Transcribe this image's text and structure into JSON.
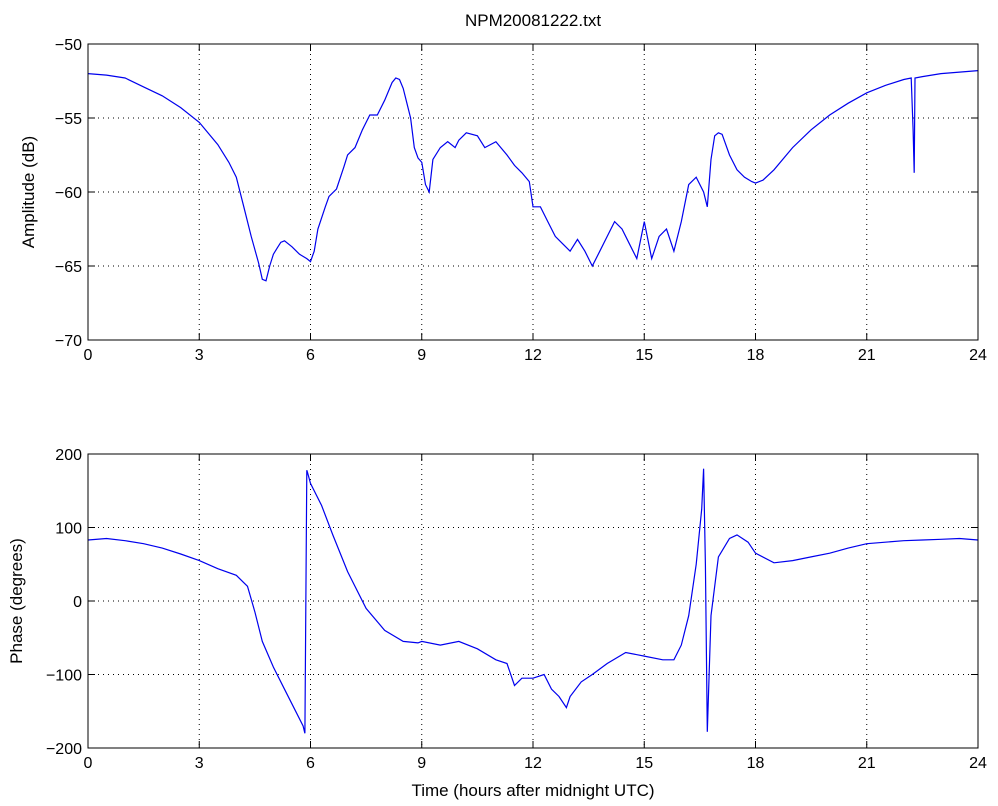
{
  "chart_data": [
    {
      "type": "line",
      "title": "NPM20081222.txt",
      "xlabel": "",
      "ylabel": "Amplitude (dB)",
      "xlim": [
        0,
        24
      ],
      "ylim": [
        -70,
        -50
      ],
      "xticks": [
        "0",
        "3",
        "6",
        "9",
        "12",
        "15",
        "18",
        "21",
        "24"
      ],
      "yticks": [
        "-50",
        "-55",
        "-60",
        "-65",
        "-70"
      ],
      "grid": true,
      "line_color": "#0000ee",
      "series": [
        {
          "x": [
            0,
            0.5,
            1,
            1.5,
            2,
            2.5,
            3,
            3.5,
            3.8,
            4,
            4.2,
            4.4,
            4.6,
            4.7,
            4.8,
            4.9,
            5.0,
            5.1,
            5.2,
            5.3,
            5.5,
            5.7,
            5.9,
            6.0,
            6.1,
            6.2,
            6.4,
            6.5,
            6.7,
            6.9,
            7.0,
            7.2,
            7.4,
            7.6,
            7.8,
            8.0,
            8.2,
            8.3,
            8.4,
            8.5,
            8.6,
            8.7,
            8.8,
            8.9,
            9.0,
            9.1,
            9.2,
            9.3,
            9.5,
            9.7,
            9.9,
            10.0,
            10.2,
            10.5,
            10.7,
            11.0,
            11.3,
            11.5,
            11.7,
            11.9,
            12.0,
            12.2,
            12.4,
            12.6,
            12.8,
            13.0,
            13.2,
            13.4,
            13.6,
            13.8,
            14.0,
            14.2,
            14.4,
            14.6,
            14.8,
            15.0,
            15.2,
            15.4,
            15.6,
            15.8,
            16.0,
            16.2,
            16.4,
            16.6,
            16.7,
            16.8,
            16.9,
            17.0,
            17.1,
            17.3,
            17.5,
            17.7,
            17.9,
            18.0,
            18.2,
            18.5,
            19.0,
            19.5,
            20.0,
            20.5,
            21.0,
            21.5,
            22.0,
            22.2,
            22.25,
            22.28,
            22.3,
            22.5,
            23.0,
            23.5,
            24
          ],
          "y": [
            -52.0,
            -52.1,
            -52.3,
            -52.9,
            -53.5,
            -54.3,
            -55.3,
            -56.8,
            -58.0,
            -59.0,
            -61.0,
            -63.0,
            -64.8,
            -65.9,
            -66.0,
            -65.0,
            -64.2,
            -63.8,
            -63.4,
            -63.3,
            -63.7,
            -64.2,
            -64.5,
            -64.7,
            -64.0,
            -62.5,
            -61.0,
            -60.3,
            -59.8,
            -58.3,
            -57.5,
            -57.0,
            -55.8,
            -54.8,
            -54.8,
            -53.8,
            -52.6,
            -52.3,
            -52.4,
            -53.0,
            -54.0,
            -55.0,
            -57.0,
            -57.7,
            -58.0,
            -59.5,
            -60.0,
            -57.8,
            -57.0,
            -56.6,
            -57.0,
            -56.5,
            -56.0,
            -56.2,
            -57.0,
            -56.6,
            -57.5,
            -58.2,
            -58.7,
            -59.3,
            -61.0,
            -61.0,
            -62.0,
            -63.0,
            -63.5,
            -64.0,
            -63.2,
            -64.0,
            -65.0,
            -64.0,
            -63.0,
            -62.0,
            -62.5,
            -63.5,
            -64.5,
            -62.0,
            -64.5,
            -63.0,
            -62.5,
            -64.0,
            -62.0,
            -59.5,
            -59.0,
            -60.0,
            -61.0,
            -57.8,
            -56.2,
            -56.0,
            -56.1,
            -57.5,
            -58.5,
            -59.0,
            -59.3,
            -59.4,
            -59.2,
            -58.5,
            -57.0,
            -55.8,
            -54.8,
            -54.0,
            -53.3,
            -52.8,
            -52.4,
            -52.3,
            -55.8,
            -58.7,
            -52.3,
            -52.2,
            -52.0,
            -51.9,
            -51.8
          ]
        }
      ]
    },
    {
      "type": "line",
      "title": "",
      "xlabel": "Time (hours after midnight UTC)",
      "ylabel": "Phase (degrees)",
      "xlim": [
        0,
        24
      ],
      "ylim": [
        -200,
        200
      ],
      "xticks": [
        "0",
        "3",
        "6",
        "9",
        "12",
        "15",
        "18",
        "21",
        "24"
      ],
      "yticks": [
        "200",
        "100",
        "0",
        "-100",
        "-200"
      ],
      "grid": true,
      "line_color": "#0000ee",
      "series": [
        {
          "x": [
            0,
            0.5,
            1,
            1.5,
            2,
            2.5,
            3,
            3.5,
            4,
            4.3,
            4.5,
            4.7,
            5.0,
            5.3,
            5.6,
            5.8,
            5.85,
            5.9,
            5.92,
            6.0,
            6.3,
            6.6,
            7.0,
            7.5,
            8.0,
            8.5,
            8.9,
            9.0,
            9.5,
            10.0,
            10.5,
            11.0,
            11.3,
            11.5,
            11.7,
            12.0,
            12.3,
            12.5,
            12.7,
            12.9,
            13.0,
            13.3,
            13.6,
            14.0,
            14.5,
            15.0,
            15.5,
            15.8,
            16.0,
            16.2,
            16.4,
            16.55,
            16.6,
            16.65,
            16.7,
            16.8,
            17.0,
            17.3,
            17.5,
            17.8,
            18.0,
            18.5,
            19.0,
            19.5,
            20.0,
            20.5,
            21.0,
            21.5,
            22.0,
            22.5,
            23.0,
            23.5,
            24
          ],
          "y": [
            83,
            85,
            82,
            78,
            72,
            64,
            55,
            44,
            35,
            20,
            -15,
            -55,
            -90,
            -120,
            -150,
            -170,
            -180,
            178,
            175,
            160,
            130,
            90,
            40,
            -10,
            -40,
            -55,
            -57,
            -55,
            -60,
            -55,
            -65,
            -80,
            -85,
            -115,
            -105,
            -105,
            -100,
            -120,
            -130,
            -145,
            -130,
            -110,
            -100,
            -85,
            -70,
            -75,
            -80,
            -80,
            -60,
            -20,
            50,
            125,
            180,
            50,
            -178,
            -20,
            60,
            85,
            90,
            80,
            65,
            52,
            55,
            60,
            65,
            72,
            78,
            80,
            82,
            83,
            84,
            85,
            83
          ]
        }
      ]
    }
  ]
}
